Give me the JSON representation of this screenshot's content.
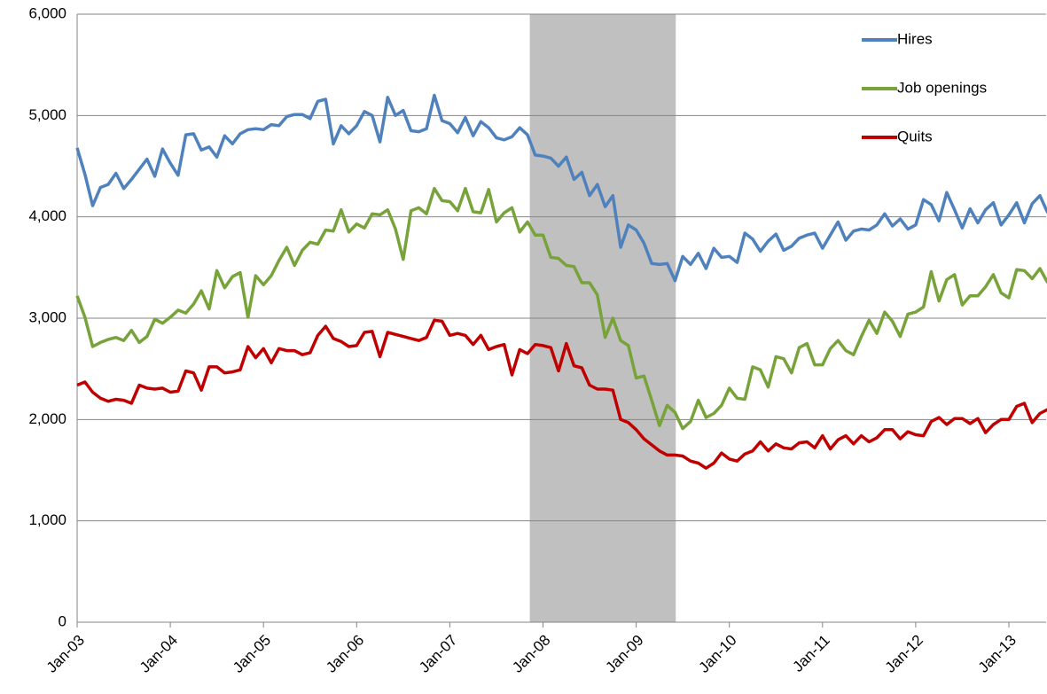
{
  "chart_data": {
    "type": "line",
    "categories": [
      "Jan-03",
      null,
      null,
      null,
      null,
      null,
      null,
      null,
      null,
      null,
      null,
      null,
      "Jan-04",
      null,
      null,
      null,
      null,
      null,
      null,
      null,
      null,
      null,
      null,
      null,
      "Jan-05",
      null,
      null,
      null,
      null,
      null,
      null,
      null,
      null,
      null,
      null,
      null,
      "Jan-06",
      null,
      null,
      null,
      null,
      null,
      null,
      null,
      null,
      null,
      null,
      null,
      "Jan-07",
      null,
      null,
      null,
      null,
      null,
      null,
      null,
      null,
      null,
      null,
      null,
      "Jan-08",
      null,
      null,
      null,
      null,
      null,
      null,
      null,
      null,
      null,
      null,
      null,
      "Jan-09",
      null,
      null,
      null,
      null,
      null,
      null,
      null,
      null,
      null,
      null,
      null,
      "Jan-10",
      null,
      null,
      null,
      null,
      null,
      null,
      null,
      null,
      null,
      null,
      null,
      "Jan-11",
      null,
      null,
      null,
      null,
      null,
      null,
      null,
      null,
      null,
      null,
      null,
      "Jan-12",
      null,
      null,
      null,
      null,
      null,
      null,
      null,
      null,
      null,
      null,
      null,
      "Jan-13",
      null,
      null,
      null,
      null,
      null
    ],
    "series": [
      {
        "name": "Hires",
        "color": "#4f81bd",
        "values": [
          4680,
          4420,
          4110,
          4290,
          4320,
          4430,
          4280,
          4370,
          4470,
          4570,
          4400,
          4670,
          4530,
          4410,
          4810,
          4820,
          4660,
          4690,
          4590,
          4800,
          4720,
          4820,
          4860,
          4870,
          4860,
          4910,
          4900,
          4990,
          5010,
          5010,
          4970,
          5140,
          5160,
          4720,
          4900,
          4820,
          4900,
          5040,
          5000,
          4740,
          5180,
          5000,
          5050,
          4850,
          4840,
          4870,
          5200,
          4950,
          4920,
          4830,
          4980,
          4800,
          4940,
          4880,
          4780,
          4760,
          4790,
          4880,
          4810,
          4610,
          4600,
          4580,
          4500,
          4590,
          4370,
          4440,
          4210,
          4320,
          4100,
          4210,
          3700,
          3920,
          3870,
          3740,
          3540,
          3530,
          3540,
          3370,
          3610,
          3530,
          3640,
          3490,
          3690,
          3600,
          3610,
          3550,
          3840,
          3780,
          3660,
          3760,
          3830,
          3670,
          3710,
          3790,
          3820,
          3840,
          3690,
          3820,
          3950,
          3770,
          3860,
          3880,
          3870,
          3920,
          4030,
          3910,
          3980,
          3880,
          3920,
          4170,
          4120,
          3960,
          4240,
          4070,
          3890,
          4080,
          3940,
          4070,
          4140,
          3920,
          4020,
          4140,
          3940,
          4130,
          4210,
          4040
        ]
      },
      {
        "name": "Job openings",
        "color": "#77a33a",
        "values": [
          3220,
          3010,
          2720,
          2760,
          2790,
          2810,
          2780,
          2880,
          2760,
          2820,
          2990,
          2950,
          3010,
          3080,
          3050,
          3140,
          3270,
          3090,
          3470,
          3300,
          3410,
          3450,
          3010,
          3420,
          3330,
          3420,
          3570,
          3700,
          3520,
          3670,
          3750,
          3730,
          3870,
          3860,
          4070,
          3850,
          3930,
          3890,
          4030,
          4020,
          4070,
          3880,
          3580,
          4060,
          4090,
          4030,
          4280,
          4160,
          4150,
          4060,
          4280,
          4050,
          4040,
          4270,
          3950,
          4040,
          4090,
          3850,
          3950,
          3820,
          3820,
          3600,
          3590,
          3520,
          3510,
          3350,
          3350,
          3230,
          2810,
          3000,
          2780,
          2730,
          2410,
          2430,
          2190,
          1940,
          2140,
          2070,
          1910,
          1980,
          2190,
          2020,
          2060,
          2140,
          2310,
          2210,
          2200,
          2520,
          2490,
          2320,
          2620,
          2600,
          2460,
          2710,
          2750,
          2540,
          2540,
          2700,
          2780,
          2680,
          2640,
          2820,
          2980,
          2850,
          3060,
          2970,
          2820,
          3040,
          3060,
          3110,
          3460,
          3170,
          3380,
          3430,
          3130,
          3220,
          3220,
          3310,
          3430,
          3250,
          3200,
          3480,
          3470,
          3390,
          3490,
          3350
        ]
      },
      {
        "name": "Quits",
        "color": "#c00000",
        "values": [
          2340,
          2370,
          2270,
          2210,
          2180,
          2200,
          2190,
          2160,
          2340,
          2310,
          2300,
          2310,
          2270,
          2280,
          2480,
          2460,
          2290,
          2520,
          2520,
          2460,
          2470,
          2490,
          2720,
          2610,
          2700,
          2560,
          2700,
          2680,
          2680,
          2640,
          2660,
          2830,
          2920,
          2800,
          2770,
          2720,
          2730,
          2860,
          2870,
          2620,
          2860,
          2840,
          2820,
          2800,
          2780,
          2810,
          2980,
          2970,
          2830,
          2850,
          2830,
          2740,
          2830,
          2690,
          2720,
          2740,
          2440,
          2690,
          2650,
          2740,
          2730,
          2710,
          2480,
          2750,
          2530,
          2510,
          2340,
          2300,
          2300,
          2290,
          2000,
          1970,
          1900,
          1810,
          1750,
          1690,
          1650,
          1650,
          1640,
          1590,
          1570,
          1520,
          1570,
          1670,
          1610,
          1590,
          1660,
          1690,
          1780,
          1690,
          1760,
          1720,
          1710,
          1770,
          1780,
          1720,
          1840,
          1710,
          1800,
          1840,
          1760,
          1840,
          1780,
          1820,
          1900,
          1900,
          1810,
          1880,
          1850,
          1840,
          1980,
          2020,
          1950,
          2010,
          2010,
          1960,
          2010,
          1870,
          1950,
          2000,
          2000,
          2130,
          2160,
          1970,
          2060,
          2100
        ]
      }
    ],
    "shaded_x": [
      58.3,
      77.1
    ],
    "ylim": [
      0,
      6000
    ],
    "yticks": [
      0,
      {
        "value": 1000,
        "label": "1,000"
      },
      {
        "value": 2000,
        "label": "2,000"
      },
      {
        "value": 3000,
        "label": "3,000"
      },
      {
        "value": 4000,
        "label": "4,000"
      },
      {
        "value": 5000,
        "label": "5,000"
      },
      {
        "value": 6000,
        "label": "6,000"
      }
    ],
    "grid": true,
    "legend": "top-right"
  }
}
